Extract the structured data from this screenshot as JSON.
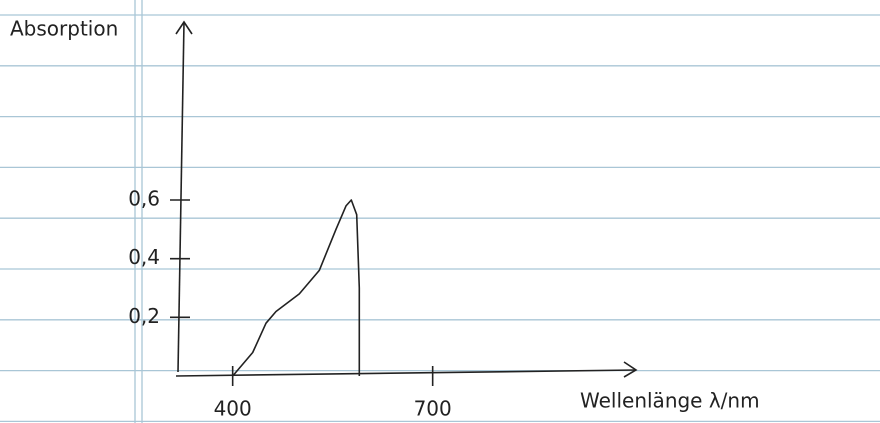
{
  "chart_data": {
    "type": "line",
    "y_label": "Absorption",
    "x_label": "Wellenlänge λ/nm",
    "xlim": [
      315,
      1005
    ],
    "ylim": [
      0,
      1.2
    ],
    "xticks": [
      400,
      700
    ],
    "yticks": [
      {
        "value": 0.2,
        "label": "0,2"
      },
      {
        "value": 0.4,
        "label": "0,4"
      },
      {
        "value": 0.6,
        "label": "0,6"
      }
    ],
    "x": [
      400,
      430,
      450,
      465,
      500,
      530,
      555,
      570,
      578,
      586,
      590,
      590
    ],
    "series": [
      {
        "color": "#222222",
        "values": [
          0,
          0.08,
          0.18,
          0.22,
          0.28,
          0.36,
          0.5,
          0.58,
          0.6,
          0.55,
          0.3,
          0
        ]
      }
    ]
  }
}
